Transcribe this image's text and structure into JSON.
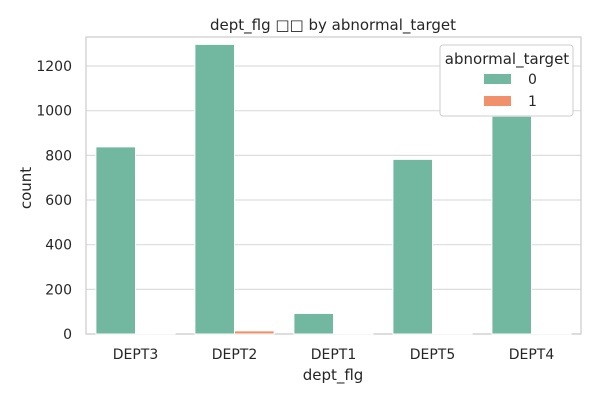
{
  "chart_data": {
    "type": "bar",
    "title": "dept_flg □□ by abnormal_target",
    "xlabel": "dept_flg",
    "ylabel": "count",
    "categories": [
      "DEPT3",
      "DEPT2",
      "DEPT1",
      "DEPT5",
      "DEPT4"
    ],
    "series": [
      {
        "name": "0",
        "color": "#72b79f",
        "values": [
          838,
          1297,
          92,
          782,
          975
        ]
      },
      {
        "name": "1",
        "color": "#f0916b",
        "values": [
          3,
          14,
          2,
          4,
          4
        ]
      }
    ],
    "ylim": [
      0,
      1330
    ],
    "yticks": [
      0,
      200,
      400,
      600,
      800,
      1000,
      1200
    ],
    "grid": true,
    "legend": {
      "title": "abnormal_target",
      "placement": "top-right"
    }
  }
}
